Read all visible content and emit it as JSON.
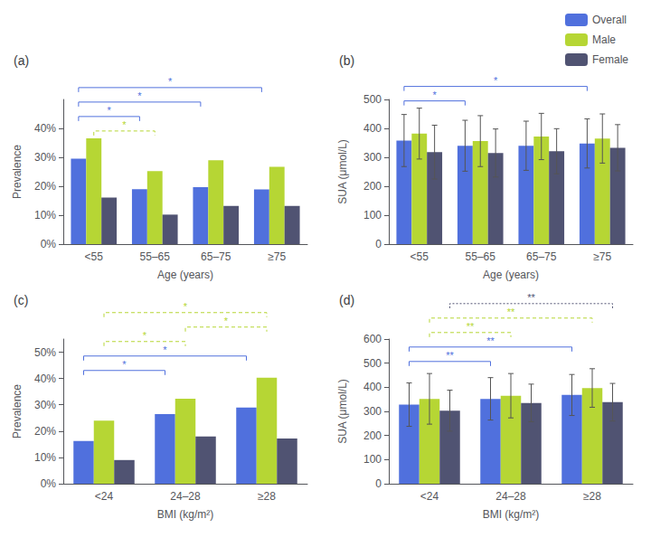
{
  "chart_data": [
    {
      "type": "bar",
      "title": "(a)",
      "xlabel": "Age (years)",
      "ylabel": "Prevalence",
      "categories": [
        "<55",
        "55–65",
        "65–75",
        "≥75"
      ],
      "series": [
        {
          "name": "Overall",
          "values": [
            0.295,
            0.19,
            0.197,
            0.189
          ]
        },
        {
          "name": "Male",
          "values": [
            0.366,
            0.252,
            0.29,
            0.267
          ]
        },
        {
          "name": "Female",
          "values": [
            0.161,
            0.102,
            0.132,
            0.132
          ]
        }
      ],
      "ylim": [
        0,
        0.5
      ],
      "yticks": [
        {
          "value": 0,
          "label": "0%"
        },
        {
          "value": 0.1,
          "label": "10%"
        },
        {
          "value": 0.2,
          "label": "20%"
        },
        {
          "value": 0.3,
          "label": "30%"
        },
        {
          "value": 0.4,
          "label": "40%"
        }
      ],
      "grid": false,
      "annotations": [
        {
          "text": "*",
          "series": "Male",
          "from": "<55",
          "to": "55–65",
          "line_style": "dashed"
        },
        {
          "text": "*",
          "series": "Overall",
          "from": "<55",
          "to": "55–65",
          "line_style": "solid"
        },
        {
          "text": "*",
          "series": "Overall",
          "from": "<55",
          "to": "65–75",
          "line_style": "solid"
        },
        {
          "text": "*",
          "series": "Overall",
          "from": "<55",
          "to": "≥75",
          "line_style": "solid"
        }
      ]
    },
    {
      "type": "bar",
      "title": "(b)",
      "xlabel": "Age (years)",
      "ylabel": "SUA (μmol/L)",
      "categories": [
        "<55",
        "55–65",
        "65–75",
        "≥75"
      ],
      "series": [
        {
          "name": "Overall",
          "values": [
            358,
            340,
            340,
            348
          ],
          "errors": [
            90,
            88,
            85,
            85
          ]
        },
        {
          "name": "Male",
          "values": [
            382,
            356,
            372,
            365
          ],
          "errors": [
            88,
            88,
            80,
            85
          ]
        },
        {
          "name": "Female",
          "values": [
            318,
            315,
            321,
            333
          ],
          "errors": [
            93,
            83,
            78,
            80
          ]
        }
      ],
      "ylim": [
        0,
        500
      ],
      "yticks": [
        0,
        100,
        200,
        300,
        400,
        500
      ],
      "grid": false,
      "legend": "upper right",
      "annotations": [
        {
          "text": "*",
          "series": "Overall",
          "from": "<55",
          "to": "55–65",
          "line_style": "solid"
        },
        {
          "text": "*",
          "series": "Overall",
          "from": "<55",
          "to": "≥75",
          "line_style": "solid"
        }
      ]
    },
    {
      "type": "bar",
      "title": "(c)",
      "xlabel": "BMI (kg/m²)",
      "ylabel": "Prevalence",
      "categories": [
        "<24",
        "24–28",
        "≥28"
      ],
      "series": [
        {
          "name": "Overall",
          "values": [
            0.162,
            0.265,
            0.29
          ]
        },
        {
          "name": "Male",
          "values": [
            0.24,
            0.323,
            0.403
          ]
        },
        {
          "name": "Female",
          "values": [
            0.09,
            0.18,
            0.172
          ]
        }
      ],
      "ylim": [
        0,
        0.55
      ],
      "yticks": [
        {
          "value": 0,
          "label": "0%"
        },
        {
          "value": 0.1,
          "label": "10%"
        },
        {
          "value": 0.2,
          "label": "20%"
        },
        {
          "value": 0.3,
          "label": "30%"
        },
        {
          "value": 0.4,
          "label": "40%"
        },
        {
          "value": 0.5,
          "label": "50%"
        }
      ],
      "grid": false,
      "annotations": [
        {
          "text": "*",
          "series": "Overall",
          "from": "<24",
          "to": "24–28",
          "line_style": "solid"
        },
        {
          "text": "*",
          "series": "Overall",
          "from": "<24",
          "to": "≥28",
          "line_style": "solid"
        },
        {
          "text": "*",
          "series": "Male",
          "from": "<24",
          "to": "24–28",
          "line_style": "dashed"
        },
        {
          "text": "*",
          "series": "Male",
          "from": "24–28",
          "to": "≥28",
          "line_style": "dashed"
        },
        {
          "text": "*",
          "series": "Male",
          "from": "<24",
          "to": "≥28",
          "line_style": "dashed"
        }
      ]
    },
    {
      "type": "bar",
      "title": "(d)",
      "xlabel": "BMI (kg/m²)",
      "ylabel": "SUA (μmol/L)",
      "categories": [
        "<24",
        "24–28",
        "≥28"
      ],
      "series": [
        {
          "name": "Overall",
          "values": [
            328,
            352,
            368
          ],
          "errors": [
            90,
            88,
            85
          ]
        },
        {
          "name": "Male",
          "values": [
            352,
            365,
            397
          ],
          "errors": [
            105,
            92,
            80
          ]
        },
        {
          "name": "Female",
          "values": [
            303,
            335,
            338
          ],
          "errors": [
            85,
            78,
            78
          ]
        }
      ],
      "ylim": [
        0,
        600
      ],
      "yticks": [
        0,
        100,
        200,
        300,
        400,
        500,
        600
      ],
      "grid": false,
      "annotations": [
        {
          "text": "**",
          "series": "Overall",
          "from": "<24",
          "to": "24–28",
          "line_style": "solid"
        },
        {
          "text": "**",
          "series": "Overall",
          "from": "<24",
          "to": "≥28",
          "line_style": "solid"
        },
        {
          "text": "**",
          "series": "Male",
          "from": "<24",
          "to": "24–28",
          "line_style": "dashed"
        },
        {
          "text": "**",
          "series": "Male",
          "from": "<24",
          "to": "≥28",
          "line_style": "dashed"
        },
        {
          "text": "**",
          "series": "Female",
          "from": "<24",
          "to": "≥28",
          "line_style": "dotted"
        }
      ]
    }
  ]
}
